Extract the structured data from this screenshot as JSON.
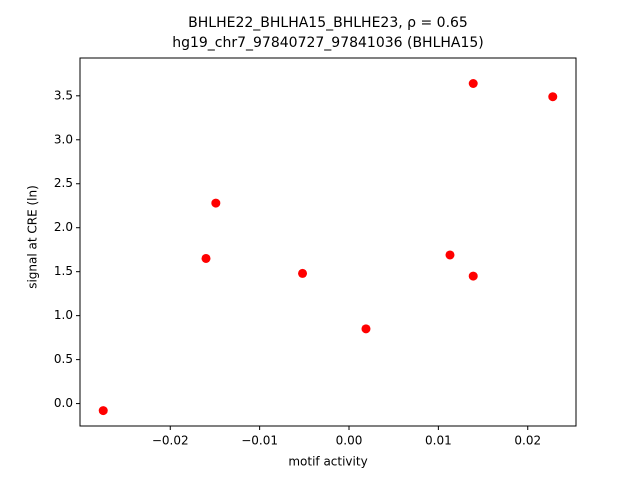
{
  "chart_data": {
    "type": "scatter",
    "title": "BHLHE22_BHLHA15_BHLHE23, ρ = 0.65",
    "subtitle": "hg19_chr7_97840727_97841036 (BHLHA15)",
    "x_label": "motif activity",
    "y_label": "signal at CRE (ln)",
    "series": [
      {
        "color": "#ff0000",
        "x": [
          -0.0275,
          -0.016,
          -0.0149,
          -0.0052,
          0.0019,
          0.0113,
          0.0139,
          0.0139,
          0.0228
        ],
        "values": [
          -0.08,
          1.65,
          2.28,
          1.48,
          0.85,
          1.69,
          1.45,
          3.64,
          3.49
        ]
      }
    ],
    "xlim": [
      -0.0301,
      0.0254
    ],
    "ylim": [
      -0.255,
      3.93
    ],
    "xticks": [
      {
        "value": -0.02,
        "label": "−0.02"
      },
      {
        "value": -0.01,
        "label": "−0.01"
      },
      {
        "value": 0,
        "label": "0.00"
      },
      0.01,
      0.02
    ],
    "yticks": [
      {
        "value": 0,
        "label": "0.0"
      },
      0.5,
      {
        "value": 1,
        "label": "1.0"
      },
      1.5,
      {
        "value": 2,
        "label": "2.0"
      },
      2.5,
      {
        "value": 3,
        "label": "3.0"
      },
      3.5
    ],
    "grid": false
  }
}
